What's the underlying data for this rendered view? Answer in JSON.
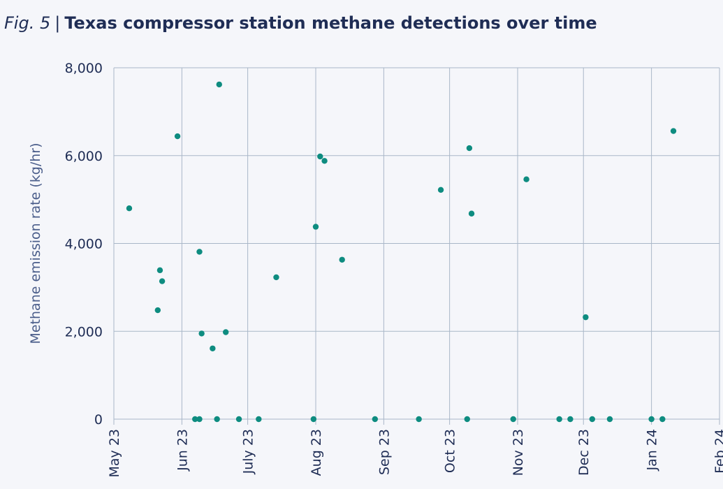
{
  "figure": {
    "label": "Fig. 5",
    "separator": "|",
    "title": "Texas compressor station methane detections over time"
  },
  "chart_data": {
    "type": "scatter",
    "title": "Texas compressor station methane detections over time",
    "ylabel": "Methane emission rate (kg/hr)",
    "xlabel": "",
    "ylim": [
      0,
      8000
    ],
    "xlim": [
      "2023-05-01",
      "2024-02-01"
    ],
    "grid": true,
    "colors": {
      "point": "#0e8c80",
      "grid": "#a9b7c8",
      "axis_text": "#1f2d55",
      "ylabel": "#4a5d8a"
    },
    "y_ticks": [
      {
        "value": 0,
        "label": "0"
      },
      {
        "value": 2000,
        "label": "2,000"
      },
      {
        "value": 4000,
        "label": "4,000"
      },
      {
        "value": 6000,
        "label": "6,000"
      },
      {
        "value": 8000,
        "label": "8,000"
      }
    ],
    "x_ticks": [
      {
        "date": "2023-05-01",
        "label": "May 23"
      },
      {
        "date": "2023-06-01",
        "label": "Jun 23"
      },
      {
        "date": "2023-07-01",
        "label": "July 23"
      },
      {
        "date": "2023-08-01",
        "label": "Aug 23"
      },
      {
        "date": "2023-09-01",
        "label": "Sep 23"
      },
      {
        "date": "2023-10-01",
        "label": "Oct 23"
      },
      {
        "date": "2023-11-01",
        "label": "Nov 23"
      },
      {
        "date": "2023-12-01",
        "label": "Dec 23"
      },
      {
        "date": "2024-01-01",
        "label": "Jan 24"
      },
      {
        "date": "2024-02-01",
        "label": "Feb 24"
      }
    ],
    "points": [
      {
        "date": "2023-05-08",
        "value": 4800
      },
      {
        "date": "2023-05-21",
        "value": 2480
      },
      {
        "date": "2023-05-22",
        "value": 3390
      },
      {
        "date": "2023-05-23",
        "value": 3140
      },
      {
        "date": "2023-05-30",
        "value": 6440
      },
      {
        "date": "2023-06-07",
        "value": 0
      },
      {
        "date": "2023-06-09",
        "value": 3810
      },
      {
        "date": "2023-06-09",
        "value": 0
      },
      {
        "date": "2023-06-10",
        "value": 1950
      },
      {
        "date": "2023-06-15",
        "value": 1610
      },
      {
        "date": "2023-06-17",
        "value": 0
      },
      {
        "date": "2023-06-18",
        "value": 7620
      },
      {
        "date": "2023-06-21",
        "value": 1980
      },
      {
        "date": "2023-06-27",
        "value": 0
      },
      {
        "date": "2023-07-06",
        "value": 0
      },
      {
        "date": "2023-07-14",
        "value": 3230
      },
      {
        "date": "2023-07-31",
        "value": 0
      },
      {
        "date": "2023-08-01",
        "value": 4380
      },
      {
        "date": "2023-08-03",
        "value": 5980
      },
      {
        "date": "2023-08-05",
        "value": 5880
      },
      {
        "date": "2023-08-13",
        "value": 3630
      },
      {
        "date": "2023-08-28",
        "value": 0
      },
      {
        "date": "2023-09-17",
        "value": 0
      },
      {
        "date": "2023-09-27",
        "value": 5220
      },
      {
        "date": "2023-10-09",
        "value": 0
      },
      {
        "date": "2023-10-10",
        "value": 6170
      },
      {
        "date": "2023-10-11",
        "value": 4680
      },
      {
        "date": "2023-10-30",
        "value": 0
      },
      {
        "date": "2023-11-05",
        "value": 5460
      },
      {
        "date": "2023-11-20",
        "value": 0
      },
      {
        "date": "2023-11-25",
        "value": 0
      },
      {
        "date": "2023-12-02",
        "value": 2320
      },
      {
        "date": "2023-12-05",
        "value": 0
      },
      {
        "date": "2023-12-13",
        "value": 0
      },
      {
        "date": "2024-01-01",
        "value": 0
      },
      {
        "date": "2024-01-06",
        "value": 0
      },
      {
        "date": "2024-01-11",
        "value": 6560
      }
    ]
  }
}
